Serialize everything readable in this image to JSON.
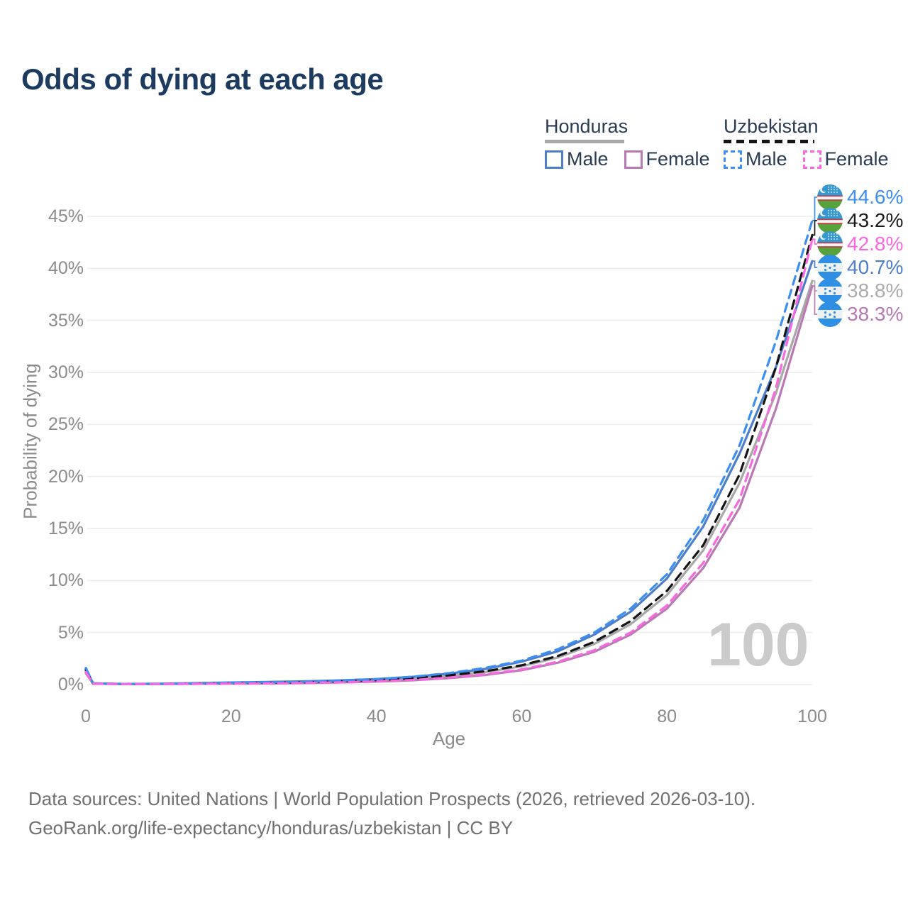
{
  "title": "Odds of dying at each age",
  "watermark": "100",
  "legend": {
    "honduras": {
      "label": "Honduras",
      "male": "Male",
      "female": "Female"
    },
    "uzbekistan": {
      "label": "Uzbekistan",
      "male": "Male",
      "female": "Female"
    }
  },
  "colors": {
    "honduras_male": "#4e7ec9",
    "honduras_female": "#b979b2",
    "honduras_all": "#a8a8a8",
    "uzbekistan_male": "#3d8ef2",
    "uzbekistan_female": "#f868e0",
    "uzbekistan_all": "#141414",
    "grid": "#ececec",
    "title_text": "#1d3b5f",
    "axis_text": "#8b8b8b",
    "watermark_text": "#cbcbcb"
  },
  "chart_data": {
    "type": "line",
    "title": "Odds of dying at each age",
    "xlabel": "Age",
    "ylabel": "Probability of dying",
    "xlim": [
      0,
      100
    ],
    "ylim": [
      0,
      47
    ],
    "grid": "horizontal",
    "legend_position": "top-right",
    "x_tick_labels": [
      "0",
      "20",
      "40",
      "60",
      "80",
      "100"
    ],
    "y_tick_labels": [
      "0%",
      "5%",
      "10%",
      "15%",
      "20%",
      "25%",
      "30%",
      "35%",
      "40%",
      "45%"
    ],
    "x": [
      0,
      1,
      5,
      10,
      15,
      20,
      25,
      30,
      35,
      40,
      45,
      50,
      55,
      60,
      65,
      70,
      75,
      80,
      85,
      90,
      95,
      100
    ],
    "series": [
      {
        "name": "Honduras",
        "country": "Honduras",
        "sex": "all",
        "style": "solid",
        "color": "#a8a8a8",
        "y": [
          1.3,
          0.1,
          0.05,
          0.06,
          0.1,
          0.14,
          0.17,
          0.21,
          0.28,
          0.39,
          0.56,
          0.82,
          1.2,
          1.75,
          2.6,
          3.9,
          5.8,
          8.6,
          12.9,
          19.4,
          28.0,
          38.8
        ]
      },
      {
        "name": "Honduras Male",
        "country": "Honduras",
        "sex": "male",
        "style": "solid",
        "color": "#4e7ec9",
        "y": [
          1.5,
          0.12,
          0.06,
          0.08,
          0.14,
          0.2,
          0.25,
          0.31,
          0.4,
          0.53,
          0.74,
          1.05,
          1.5,
          2.2,
          3.2,
          4.8,
          7.0,
          10.2,
          15.2,
          22.2,
          30.5,
          40.7
        ]
      },
      {
        "name": "Honduras Female",
        "country": "Honduras",
        "sex": "female",
        "style": "solid",
        "color": "#b979b2",
        "y": [
          1.1,
          0.09,
          0.04,
          0.05,
          0.07,
          0.09,
          0.11,
          0.14,
          0.2,
          0.28,
          0.41,
          0.62,
          0.92,
          1.38,
          2.1,
          3.15,
          4.8,
          7.3,
          11.2,
          17.0,
          26.5,
          38.3
        ]
      },
      {
        "name": "Uzbekistan",
        "country": "Uzbekistan",
        "sex": "all",
        "style": "dashed",
        "color": "#141414",
        "y": [
          1.4,
          0.1,
          0.05,
          0.06,
          0.1,
          0.14,
          0.17,
          0.22,
          0.3,
          0.42,
          0.6,
          0.88,
          1.28,
          1.85,
          2.75,
          4.1,
          6.1,
          9.0,
          13.4,
          20.2,
          30.5,
          43.2
        ]
      },
      {
        "name": "Uzbekistan Male",
        "country": "Uzbekistan",
        "sex": "male",
        "style": "dashed",
        "color": "#3d8ef2",
        "y": [
          1.6,
          0.12,
          0.06,
          0.07,
          0.12,
          0.18,
          0.22,
          0.28,
          0.38,
          0.52,
          0.75,
          1.1,
          1.6,
          2.3,
          3.4,
          5.0,
          7.3,
          10.6,
          15.8,
          23.0,
          33.0,
          44.6
        ]
      },
      {
        "name": "Uzbekistan Female",
        "country": "Uzbekistan",
        "sex": "female",
        "style": "dashed",
        "color": "#f868e0",
        "y": [
          1.2,
          0.09,
          0.04,
          0.05,
          0.07,
          0.09,
          0.11,
          0.15,
          0.21,
          0.3,
          0.44,
          0.66,
          0.98,
          1.45,
          2.2,
          3.3,
          5.0,
          7.6,
          11.7,
          17.8,
          28.5,
          42.8
        ]
      }
    ]
  },
  "end_labels": [
    {
      "label": "44.6%",
      "pct": 44.6,
      "color": "#3d8ef2",
      "flag": "uz",
      "series": "Uzbekistan Male"
    },
    {
      "label": "43.2%",
      "pct": 43.2,
      "color": "#1a1a1a",
      "flag": "uz",
      "series": "Uzbekistan"
    },
    {
      "label": "42.8%",
      "pct": 42.8,
      "color": "#f868e0",
      "flag": "uz",
      "series": "Uzbekistan Female"
    },
    {
      "label": "40.7%",
      "pct": 40.7,
      "color": "#4e7ec9",
      "flag": "hn",
      "series": "Honduras Male"
    },
    {
      "label": "38.8%",
      "pct": 38.8,
      "color": "#ababab",
      "flag": "hn",
      "series": "Honduras"
    },
    {
      "label": "38.3%",
      "pct": 38.3,
      "color": "#b979b2",
      "flag": "hn",
      "series": "Honduras Female"
    }
  ],
  "footer": {
    "line1": "Data sources: United Nations | World Population Prospects (2026, retrieved 2026-03-10).",
    "line2": "GeoRank.org/life-expectancy/honduras/uzbekistan | CC BY"
  }
}
